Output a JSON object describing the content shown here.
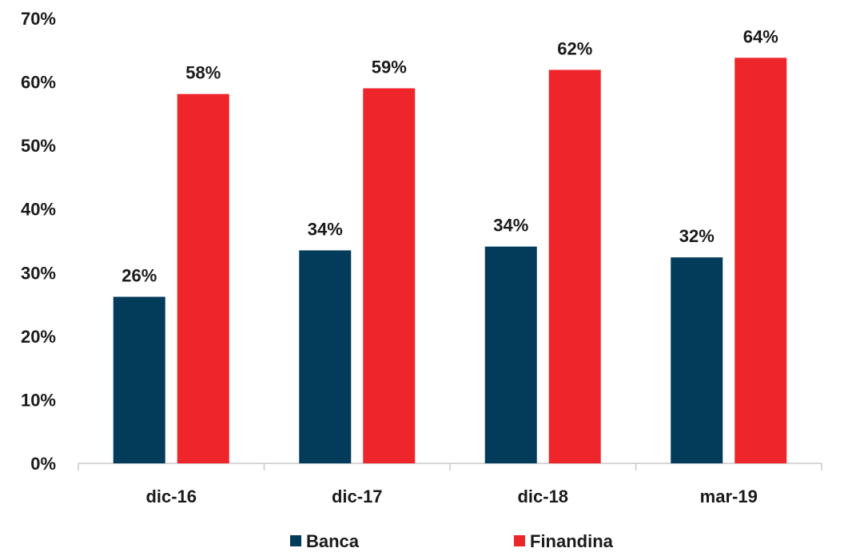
{
  "chart_data": {
    "type": "bar",
    "title": "",
    "xlabel": "",
    "ylabel": "",
    "categories": [
      "dic-16",
      "dic-17",
      "dic-18",
      "mar-19"
    ],
    "series": [
      {
        "name": "Banca",
        "color": "#033c5a",
        "values": [
          26.2,
          33.5,
          34.1,
          32.4
        ],
        "labels": [
          "26%",
          "34%",
          "34%",
          "32%"
        ]
      },
      {
        "name": "Finandina",
        "color": "#ee262c",
        "values": [
          58.1,
          59.0,
          61.9,
          63.8
        ],
        "labels": [
          "58%",
          "59%",
          "62%",
          "64%"
        ]
      }
    ],
    "ylim": [
      0,
      70
    ],
    "yticks": [
      0,
      10,
      20,
      30,
      40,
      50,
      60,
      70
    ],
    "ytick_labels": [
      "0%",
      "10%",
      "20%",
      "30%",
      "40%",
      "50%",
      "60%",
      "70%"
    ],
    "grid": false,
    "legend_position": "bottom"
  }
}
